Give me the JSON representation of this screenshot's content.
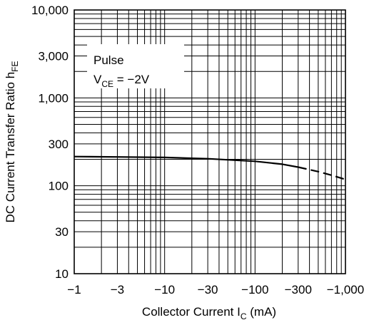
{
  "chart_data": {
    "type": "line",
    "x_axis": {
      "scale": "log",
      "range": [
        -1,
        -1000
      ],
      "ticks": [
        {
          "value": -1,
          "label": "−1"
        },
        {
          "value": -3,
          "label": "−3"
        },
        {
          "value": -10,
          "label": "−10"
        },
        {
          "value": -30,
          "label": "−30"
        },
        {
          "value": -100,
          "label": "−100"
        },
        {
          "value": -300,
          "label": "−300"
        },
        {
          "value": -1000,
          "label": "−1,000"
        }
      ],
      "label_main": "Collector Current  I",
      "label_sub": "C",
      "label_tail": "  (mA)"
    },
    "y_axis": {
      "scale": "log",
      "range": [
        10,
        10000
      ],
      "ticks": [
        {
          "value": 10,
          "label": "10"
        },
        {
          "value": 30,
          "label": "30"
        },
        {
          "value": 100,
          "label": "100"
        },
        {
          "value": 300,
          "label": "300"
        },
        {
          "value": 1000,
          "label": "1,000"
        },
        {
          "value": 3000,
          "label": "3,000"
        },
        {
          "value": 10000,
          "label": "10,000"
        }
      ],
      "label_main": "DC Current Transfer Ratio  h",
      "label_sub": "FE"
    },
    "grid": true,
    "annotation": {
      "line1": "Pulse",
      "line2_main": "V",
      "line2_sub": "CE",
      "line2_tail": " = −2V"
    },
    "series": [
      {
        "style": "solid",
        "points": [
          [
            -1,
            215
          ],
          [
            -3,
            213
          ],
          [
            -10,
            210
          ],
          [
            -30,
            203
          ],
          [
            -100,
            190
          ],
          [
            -200,
            176
          ],
          [
            -300,
            163
          ]
        ]
      },
      {
        "style": "dashed",
        "points": [
          [
            -300,
            163
          ],
          [
            -500,
            145
          ],
          [
            -700,
            132
          ],
          [
            -1000,
            118
          ]
        ]
      }
    ]
  }
}
